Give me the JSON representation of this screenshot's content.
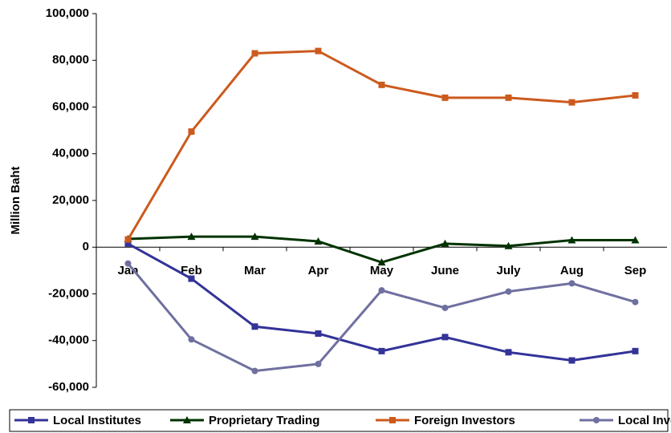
{
  "chart_data": {
    "type": "line",
    "y_label": "Million Baht",
    "categories": [
      "Jan",
      "Feb",
      "Mar",
      "Apr",
      "May",
      "June",
      "July",
      "Aug",
      "Sep"
    ],
    "series": [
      {
        "name": "Local Institutes",
        "color": "#333399",
        "marker": "square",
        "values": [
          1500,
          -13500,
          -34000,
          -37000,
          -44500,
          -38500,
          -45000,
          -48500,
          -44500
        ]
      },
      {
        "name": "Proprietary Trading",
        "color": "#003300",
        "marker": "triangle",
        "values": [
          3500,
          4500,
          4500,
          2500,
          -6500,
          1500,
          500,
          3000,
          3000
        ]
      },
      {
        "name": "Foreign Investors",
        "color": "#cc5a1e",
        "marker": "square",
        "values": [
          3300,
          49500,
          83000,
          84000,
          69500,
          64000,
          64000,
          62000,
          65000
        ]
      },
      {
        "name": "Local Investors",
        "color": "#6f6fa0",
        "marker": "circle",
        "values": [
          -7000,
          -39500,
          -53000,
          -50000,
          -18500,
          -26000,
          -19000,
          -15500,
          -23500
        ]
      }
    ],
    "ylim": [
      -60000,
      100000
    ],
    "yticks": [
      {
        "value": -60000,
        "label": "-60,000"
      },
      {
        "value": -40000,
        "label": "-40,000"
      },
      {
        "value": -20000,
        "label": "-20,000"
      },
      0,
      {
        "value": 20000,
        "label": "20,000"
      },
      {
        "value": 40000,
        "label": "40,000"
      },
      {
        "value": 60000,
        "label": "60,000"
      },
      {
        "value": 80000,
        "label": "80,000"
      },
      {
        "value": 100000,
        "label": "100,000"
      }
    ],
    "grid": false,
    "legend": "bottom"
  }
}
